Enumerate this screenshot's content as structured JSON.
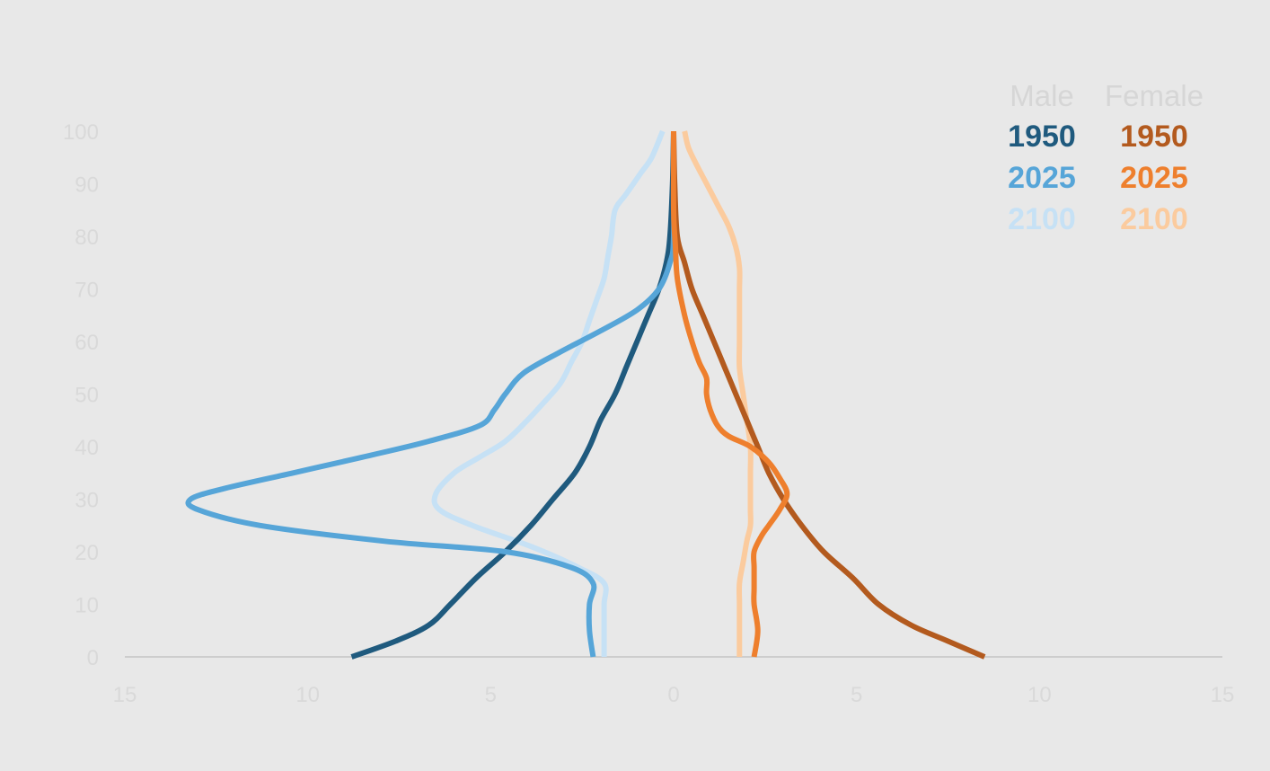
{
  "chart_data": {
    "type": "line",
    "x_axis": {
      "range": [
        -15,
        15
      ],
      "ticks": [
        -15,
        -10,
        -5,
        0,
        5,
        10,
        15
      ],
      "tick_labels": [
        "15",
        "10",
        "5",
        "0",
        "5",
        "10",
        "15"
      ]
    },
    "y_axis": {
      "range": [
        0,
        100
      ],
      "ticks": [
        0,
        10,
        20,
        30,
        40,
        50,
        60,
        70,
        80,
        90,
        100
      ],
      "tick_labels": [
        "0",
        "10",
        "20",
        "30",
        "40",
        "50",
        "60",
        "70",
        "80",
        "90",
        "100"
      ]
    },
    "grid": false,
    "legend": {
      "placement": "top-right",
      "column_headers": [
        "Male",
        "Female"
      ]
    },
    "series": [
      {
        "name": "1950",
        "group": "Male",
        "color": "#1f5a7e",
        "points": [
          [
            -8.8,
            0
          ],
          [
            -7.6,
            3
          ],
          [
            -6.7,
            6
          ],
          [
            -6.1,
            10
          ],
          [
            -5.4,
            15
          ],
          [
            -4.6,
            20
          ],
          [
            -3.9,
            25
          ],
          [
            -3.3,
            30
          ],
          [
            -2.7,
            35
          ],
          [
            -2.3,
            40
          ],
          [
            -2.0,
            45
          ],
          [
            -1.6,
            50
          ],
          [
            -1.3,
            55
          ],
          [
            -1.0,
            60
          ],
          [
            -0.7,
            65
          ],
          [
            -0.4,
            70
          ],
          [
            -0.2,
            75
          ],
          [
            -0.1,
            80
          ],
          [
            -0.03,
            90
          ],
          [
            0.0,
            100
          ]
        ]
      },
      {
        "name": "2025",
        "group": "Male",
        "color": "#56a5d8",
        "points": [
          [
            -2.2,
            0
          ],
          [
            -2.3,
            5
          ],
          [
            -2.3,
            10
          ],
          [
            -2.2,
            14
          ],
          [
            -2.8,
            17
          ],
          [
            -4.6,
            20
          ],
          [
            -7.9,
            22
          ],
          [
            -11.3,
            25
          ],
          [
            -13.0,
            28
          ],
          [
            -13.2,
            30
          ],
          [
            -12.3,
            32
          ],
          [
            -10.4,
            35
          ],
          [
            -8.5,
            38
          ],
          [
            -6.7,
            41
          ],
          [
            -5.3,
            44
          ],
          [
            -4.9,
            47
          ],
          [
            -4.6,
            50
          ],
          [
            -4.1,
            54
          ],
          [
            -3.1,
            58
          ],
          [
            -2.0,
            62
          ],
          [
            -1.0,
            66
          ],
          [
            -0.4,
            70
          ],
          [
            -0.1,
            75
          ],
          [
            0.0,
            80
          ],
          [
            0.0,
            100
          ]
        ]
      },
      {
        "name": "2100",
        "group": "Male",
        "color": "#c6e1f5",
        "points": [
          [
            -1.9,
            0
          ],
          [
            -1.9,
            5
          ],
          [
            -1.9,
            10
          ],
          [
            -1.9,
            14
          ],
          [
            -2.6,
            17
          ],
          [
            -3.9,
            21
          ],
          [
            -5.5,
            25
          ],
          [
            -6.4,
            28
          ],
          [
            -6.5,
            31
          ],
          [
            -6.0,
            35
          ],
          [
            -5.3,
            38
          ],
          [
            -4.6,
            41
          ],
          [
            -4.0,
            45
          ],
          [
            -3.6,
            48
          ],
          [
            -3.1,
            52
          ],
          [
            -2.8,
            56
          ],
          [
            -2.5,
            60
          ],
          [
            -2.3,
            64
          ],
          [
            -2.1,
            68
          ],
          [
            -1.9,
            72
          ],
          [
            -1.8,
            76
          ],
          [
            -1.7,
            80
          ],
          [
            -1.6,
            85
          ],
          [
            -1.3,
            88
          ],
          [
            -0.9,
            92
          ],
          [
            -0.6,
            95
          ],
          [
            -0.3,
            100
          ]
        ]
      },
      {
        "name": "1950",
        "group": "Female",
        "color": "#b35a1e",
        "points": [
          [
            8.5,
            0
          ],
          [
            7.5,
            3
          ],
          [
            6.5,
            6
          ],
          [
            5.6,
            10
          ],
          [
            4.9,
            15
          ],
          [
            4.1,
            20
          ],
          [
            3.5,
            25
          ],
          [
            3.0,
            30
          ],
          [
            2.6,
            35
          ],
          [
            2.3,
            40
          ],
          [
            2.0,
            45
          ],
          [
            1.7,
            50
          ],
          [
            1.4,
            55
          ],
          [
            1.1,
            60
          ],
          [
            0.8,
            65
          ],
          [
            0.5,
            70
          ],
          [
            0.3,
            75
          ],
          [
            0.1,
            80
          ],
          [
            0.03,
            90
          ],
          [
            0.0,
            100
          ]
        ]
      },
      {
        "name": "2025",
        "group": "Female",
        "color": "#ee7f2d",
        "points": [
          [
            2.2,
            0
          ],
          [
            2.3,
            5
          ],
          [
            2.2,
            10
          ],
          [
            2.2,
            13
          ],
          [
            2.2,
            17
          ],
          [
            2.2,
            20
          ],
          [
            2.4,
            23
          ],
          [
            2.6,
            25
          ],
          [
            2.9,
            28
          ],
          [
            3.1,
            31
          ],
          [
            2.9,
            34
          ],
          [
            2.6,
            37
          ],
          [
            2.1,
            40
          ],
          [
            1.5,
            42
          ],
          [
            1.2,
            44
          ],
          [
            1.0,
            47
          ],
          [
            0.9,
            50
          ],
          [
            0.9,
            53
          ],
          [
            0.7,
            56
          ],
          [
            0.5,
            60
          ],
          [
            0.3,
            65
          ],
          [
            0.1,
            72
          ],
          [
            0.05,
            78
          ],
          [
            0.0,
            85
          ],
          [
            0.0,
            100
          ]
        ]
      },
      {
        "name": "2100",
        "group": "Female",
        "color": "#fbcb9e",
        "points": [
          [
            1.8,
            0
          ],
          [
            1.8,
            5
          ],
          [
            1.8,
            10
          ],
          [
            1.8,
            14
          ],
          [
            1.9,
            18
          ],
          [
            2.0,
            22
          ],
          [
            2.1,
            25
          ],
          [
            2.1,
            28
          ],
          [
            2.1,
            31
          ],
          [
            2.1,
            35
          ],
          [
            2.1,
            40
          ],
          [
            2.0,
            45
          ],
          [
            1.9,
            50
          ],
          [
            1.8,
            55
          ],
          [
            1.8,
            60
          ],
          [
            1.8,
            65
          ],
          [
            1.8,
            70
          ],
          [
            1.8,
            74
          ],
          [
            1.7,
            78
          ],
          [
            1.5,
            82
          ],
          [
            1.2,
            86
          ],
          [
            0.9,
            90
          ],
          [
            0.6,
            94
          ],
          [
            0.4,
            97
          ],
          [
            0.3,
            100
          ]
        ]
      }
    ]
  }
}
